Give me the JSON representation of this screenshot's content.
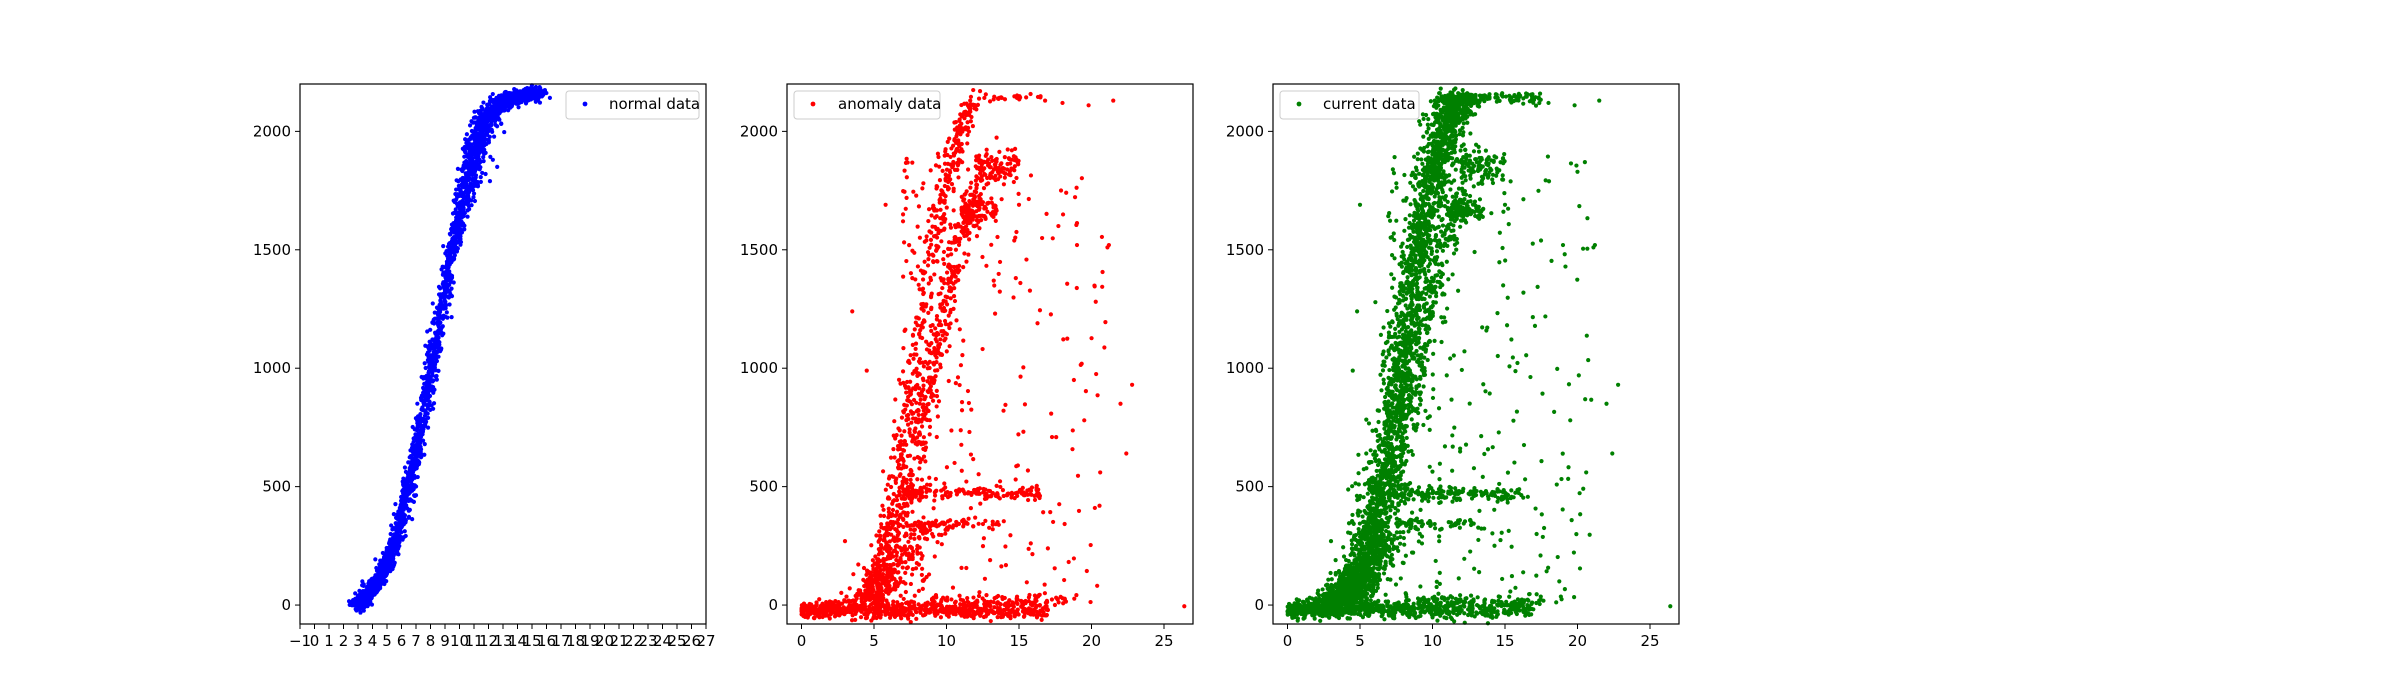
{
  "chart_data": [
    {
      "type": "scatter",
      "legend": "normal data",
      "legend_position": "top-right",
      "color": "#0000ff",
      "xlim": [
        -1,
        27
      ],
      "ylim": [
        -80,
        2200
      ],
      "xticks": [
        -1,
        0,
        1,
        2,
        3,
        4,
        5,
        6,
        7,
        8,
        9,
        10,
        11,
        12,
        13,
        14,
        15,
        16,
        17,
        18,
        19,
        20,
        21,
        22,
        23,
        24,
        25,
        26,
        27
      ],
      "yticks": [
        0,
        500,
        1000,
        1500,
        2000
      ],
      "curve": [
        [
          3.0,
          0
        ],
        [
          3.5,
          30
        ],
        [
          4.5,
          110
        ],
        [
          5.5,
          250
        ],
        [
          6.5,
          500
        ],
        [
          7.5,
          800
        ],
        [
          8.5,
          1150
        ],
        [
          9.5,
          1500
        ],
        [
          10.3,
          1700
        ],
        [
          11,
          1900
        ],
        [
          11.8,
          2050
        ],
        [
          12.8,
          2120
        ],
        [
          14,
          2150
        ],
        [
          15.5,
          2160
        ]
      ],
      "curve_spread_x": 0.45,
      "extras": [
        [
          3.1,
          60
        ],
        [
          3.3,
          100
        ],
        [
          3.0,
          20
        ],
        [
          11.8,
          1820
        ],
        [
          12.1,
          1790
        ],
        [
          12.3,
          1880
        ],
        [
          12.6,
          1850
        ],
        [
          11.5,
          1950
        ],
        [
          13.5,
          2100
        ],
        [
          15.9,
          2170
        ],
        [
          15.2,
          2140
        ],
        [
          14.6,
          2160
        ]
      ],
      "point_count": 2600
    },
    {
      "type": "scatter",
      "legend": "anomaly data",
      "legend_position": "top-left",
      "color": "#ff0000",
      "xlim": [
        -1,
        27
      ],
      "ylim": [
        -80,
        2200
      ],
      "xticks": [
        0,
        5,
        10,
        15,
        20,
        25
      ],
      "yticks": [
        0,
        500,
        1000,
        1500,
        2000
      ],
      "bands": [
        {
          "from": [
            0.0,
            -20
          ],
          "to": [
            17.0,
            -20
          ],
          "count": 700,
          "jitter_y": 18
        },
        {
          "from": [
            9.0,
            20
          ],
          "to": [
            19.0,
            20
          ],
          "count": 80,
          "jitter_y": 12
        },
        {
          "from": [
            7.0,
            470
          ],
          "to": [
            16.5,
            470
          ],
          "count": 160,
          "jitter_y": 14
        },
        {
          "from": [
            7.5,
            340
          ],
          "to": [
            14.0,
            340
          ],
          "count": 60,
          "jitter_y": 10
        },
        {
          "from": [
            12.0,
            1850
          ],
          "to": [
            15.0,
            1850
          ],
          "count": 110,
          "jitter_y": 35
        },
        {
          "from": [
            11.0,
            1660
          ],
          "to": [
            13.5,
            1660
          ],
          "count": 90,
          "jitter_y": 25
        },
        {
          "from": [
            13.0,
            2140
          ],
          "to": [
            17.5,
            2140
          ],
          "count": 20,
          "jitter_y": 8
        }
      ],
      "curves": [
        {
          "points": [
            [
              4.0,
              0
            ],
            [
              5.0,
              120
            ],
            [
              6.0,
              350
            ],
            [
              7.0,
              700
            ],
            [
              8.0,
              1100
            ],
            [
              9.0,
              1500
            ],
            [
              10.0,
              1800
            ],
            [
              11.0,
              2000
            ],
            [
              12.0,
              2150
            ]
          ],
          "count": 500,
          "spread_x": 0.35
        },
        {
          "points": [
            [
              5.0,
              0
            ],
            [
              6.0,
              150
            ],
            [
              7.0,
              400
            ],
            [
              8.0,
              700
            ],
            [
              9.0,
              1000
            ],
            [
              10.0,
              1300
            ],
            [
              11.0,
              1550
            ],
            [
              12.0,
              1750
            ]
          ],
          "count": 500,
          "spread_x": 0.4
        },
        {
          "points": [
            [
              4.0,
              0
            ],
            [
              5.5,
              80
            ],
            [
              7.0,
              200
            ],
            [
              9.0,
              330
            ]
          ],
          "count": 200,
          "spread_x": 1.0
        }
      ],
      "scatter_zone": {
        "x": [
          7,
          21
        ],
        "y": [
          0,
          1900
        ],
        "count": 280
      },
      "outliers": [
        [
          26.4,
          -5
        ],
        [
          22.8,
          930
        ],
        [
          22.4,
          640
        ],
        [
          22.0,
          850
        ],
        [
          21.1,
          1510
        ],
        [
          21.2,
          1520
        ],
        [
          19.0,
          1520
        ],
        [
          19.5,
          780
        ],
        [
          20.6,
          560
        ],
        [
          15.0,
          1690
        ],
        [
          5.8,
          1690
        ],
        [
          3.5,
          1240
        ],
        [
          4.5,
          990
        ],
        [
          3.0,
          270
        ],
        [
          16.8,
          2130
        ],
        [
          18.0,
          2120
        ],
        [
          19.8,
          2110
        ],
        [
          21.5,
          2130
        ]
      ],
      "point_count": 2600
    },
    {
      "type": "scatter",
      "legend": "current data",
      "legend_position": "top-left",
      "color": "#008000",
      "xlim": [
        -1,
        27
      ],
      "ylim": [
        -80,
        2200
      ],
      "xticks": [
        0,
        5,
        10,
        15,
        20,
        25
      ],
      "yticks": [
        0,
        500,
        1000,
        1500,
        2000
      ],
      "bands": [
        {
          "from": [
            0.0,
            -20
          ],
          "to": [
            17.0,
            -20
          ],
          "count": 700,
          "jitter_y": 18
        },
        {
          "from": [
            9.0,
            20
          ],
          "to": [
            19.0,
            20
          ],
          "count": 80,
          "jitter_y": 12
        },
        {
          "from": [
            7.0,
            470
          ],
          "to": [
            16.5,
            470
          ],
          "count": 160,
          "jitter_y": 14
        },
        {
          "from": [
            7.5,
            340
          ],
          "to": [
            14.0,
            340
          ],
          "count": 60,
          "jitter_y": 10
        },
        {
          "from": [
            12.0,
            1850
          ],
          "to": [
            15.0,
            1850
          ],
          "count": 110,
          "jitter_y": 35
        },
        {
          "from": [
            11.0,
            1660
          ],
          "to": [
            13.5,
            1660
          ],
          "count": 90,
          "jitter_y": 25
        },
        {
          "from": [
            10.5,
            2140
          ],
          "to": [
            17.5,
            2140
          ],
          "count": 120,
          "jitter_y": 12
        }
      ],
      "curves": [
        {
          "points": [
            [
              3.0,
              0
            ],
            [
              4.0,
              50
            ],
            [
              5.0,
              150
            ],
            [
              6.0,
              350
            ],
            [
              7.0,
              650
            ],
            [
              8.0,
              1050
            ],
            [
              9.0,
              1450
            ],
            [
              10.0,
              1800
            ],
            [
              11.0,
              2050
            ],
            [
              12.0,
              2150
            ]
          ],
          "count": 2400,
          "spread_x": 0.7
        },
        {
          "points": [
            [
              4.0,
              0
            ],
            [
              5.0,
              120
            ],
            [
              6.0,
              350
            ],
            [
              7.0,
              700
            ],
            [
              8.0,
              1100
            ],
            [
              9.0,
              1500
            ],
            [
              10.0,
              1800
            ],
            [
              11.0,
              2000
            ],
            [
              12.0,
              2150
            ]
          ],
          "count": 400,
          "spread_x": 0.35
        },
        {
          "points": [
            [
              5.0,
              0
            ],
            [
              6.0,
              150
            ],
            [
              7.0,
              400
            ],
            [
              8.0,
              700
            ],
            [
              9.0,
              1000
            ],
            [
              10.0,
              1300
            ],
            [
              11.0,
              1550
            ],
            [
              12.0,
              1750
            ]
          ],
          "count": 400,
          "spread_x": 0.4
        },
        {
          "points": [
            [
              2.0,
              0
            ],
            [
              4.0,
              60
            ],
            [
              6.0,
              180
            ],
            [
              8.0,
              330
            ]
          ],
          "count": 200,
          "spread_x": 1.0
        }
      ],
      "scatter_zone": {
        "x": [
          7,
          21
        ],
        "y": [
          0,
          1900
        ],
        "count": 300
      },
      "outliers": [
        [
          26.4,
          -5
        ],
        [
          22.8,
          930
        ],
        [
          22.4,
          640
        ],
        [
          22.0,
          850
        ],
        [
          21.1,
          1510
        ],
        [
          21.2,
          1520
        ],
        [
          19.0,
          1520
        ],
        [
          19.5,
          780
        ],
        [
          20.6,
          560
        ],
        [
          15.0,
          1690
        ],
        [
          5.0,
          1690
        ],
        [
          4.8,
          1240
        ],
        [
          4.5,
          990
        ],
        [
          3.0,
          270
        ],
        [
          16.8,
          2130
        ],
        [
          18.0,
          2120
        ],
        [
          19.8,
          2110
        ],
        [
          21.5,
          2130
        ]
      ],
      "point_count": 4400
    }
  ]
}
